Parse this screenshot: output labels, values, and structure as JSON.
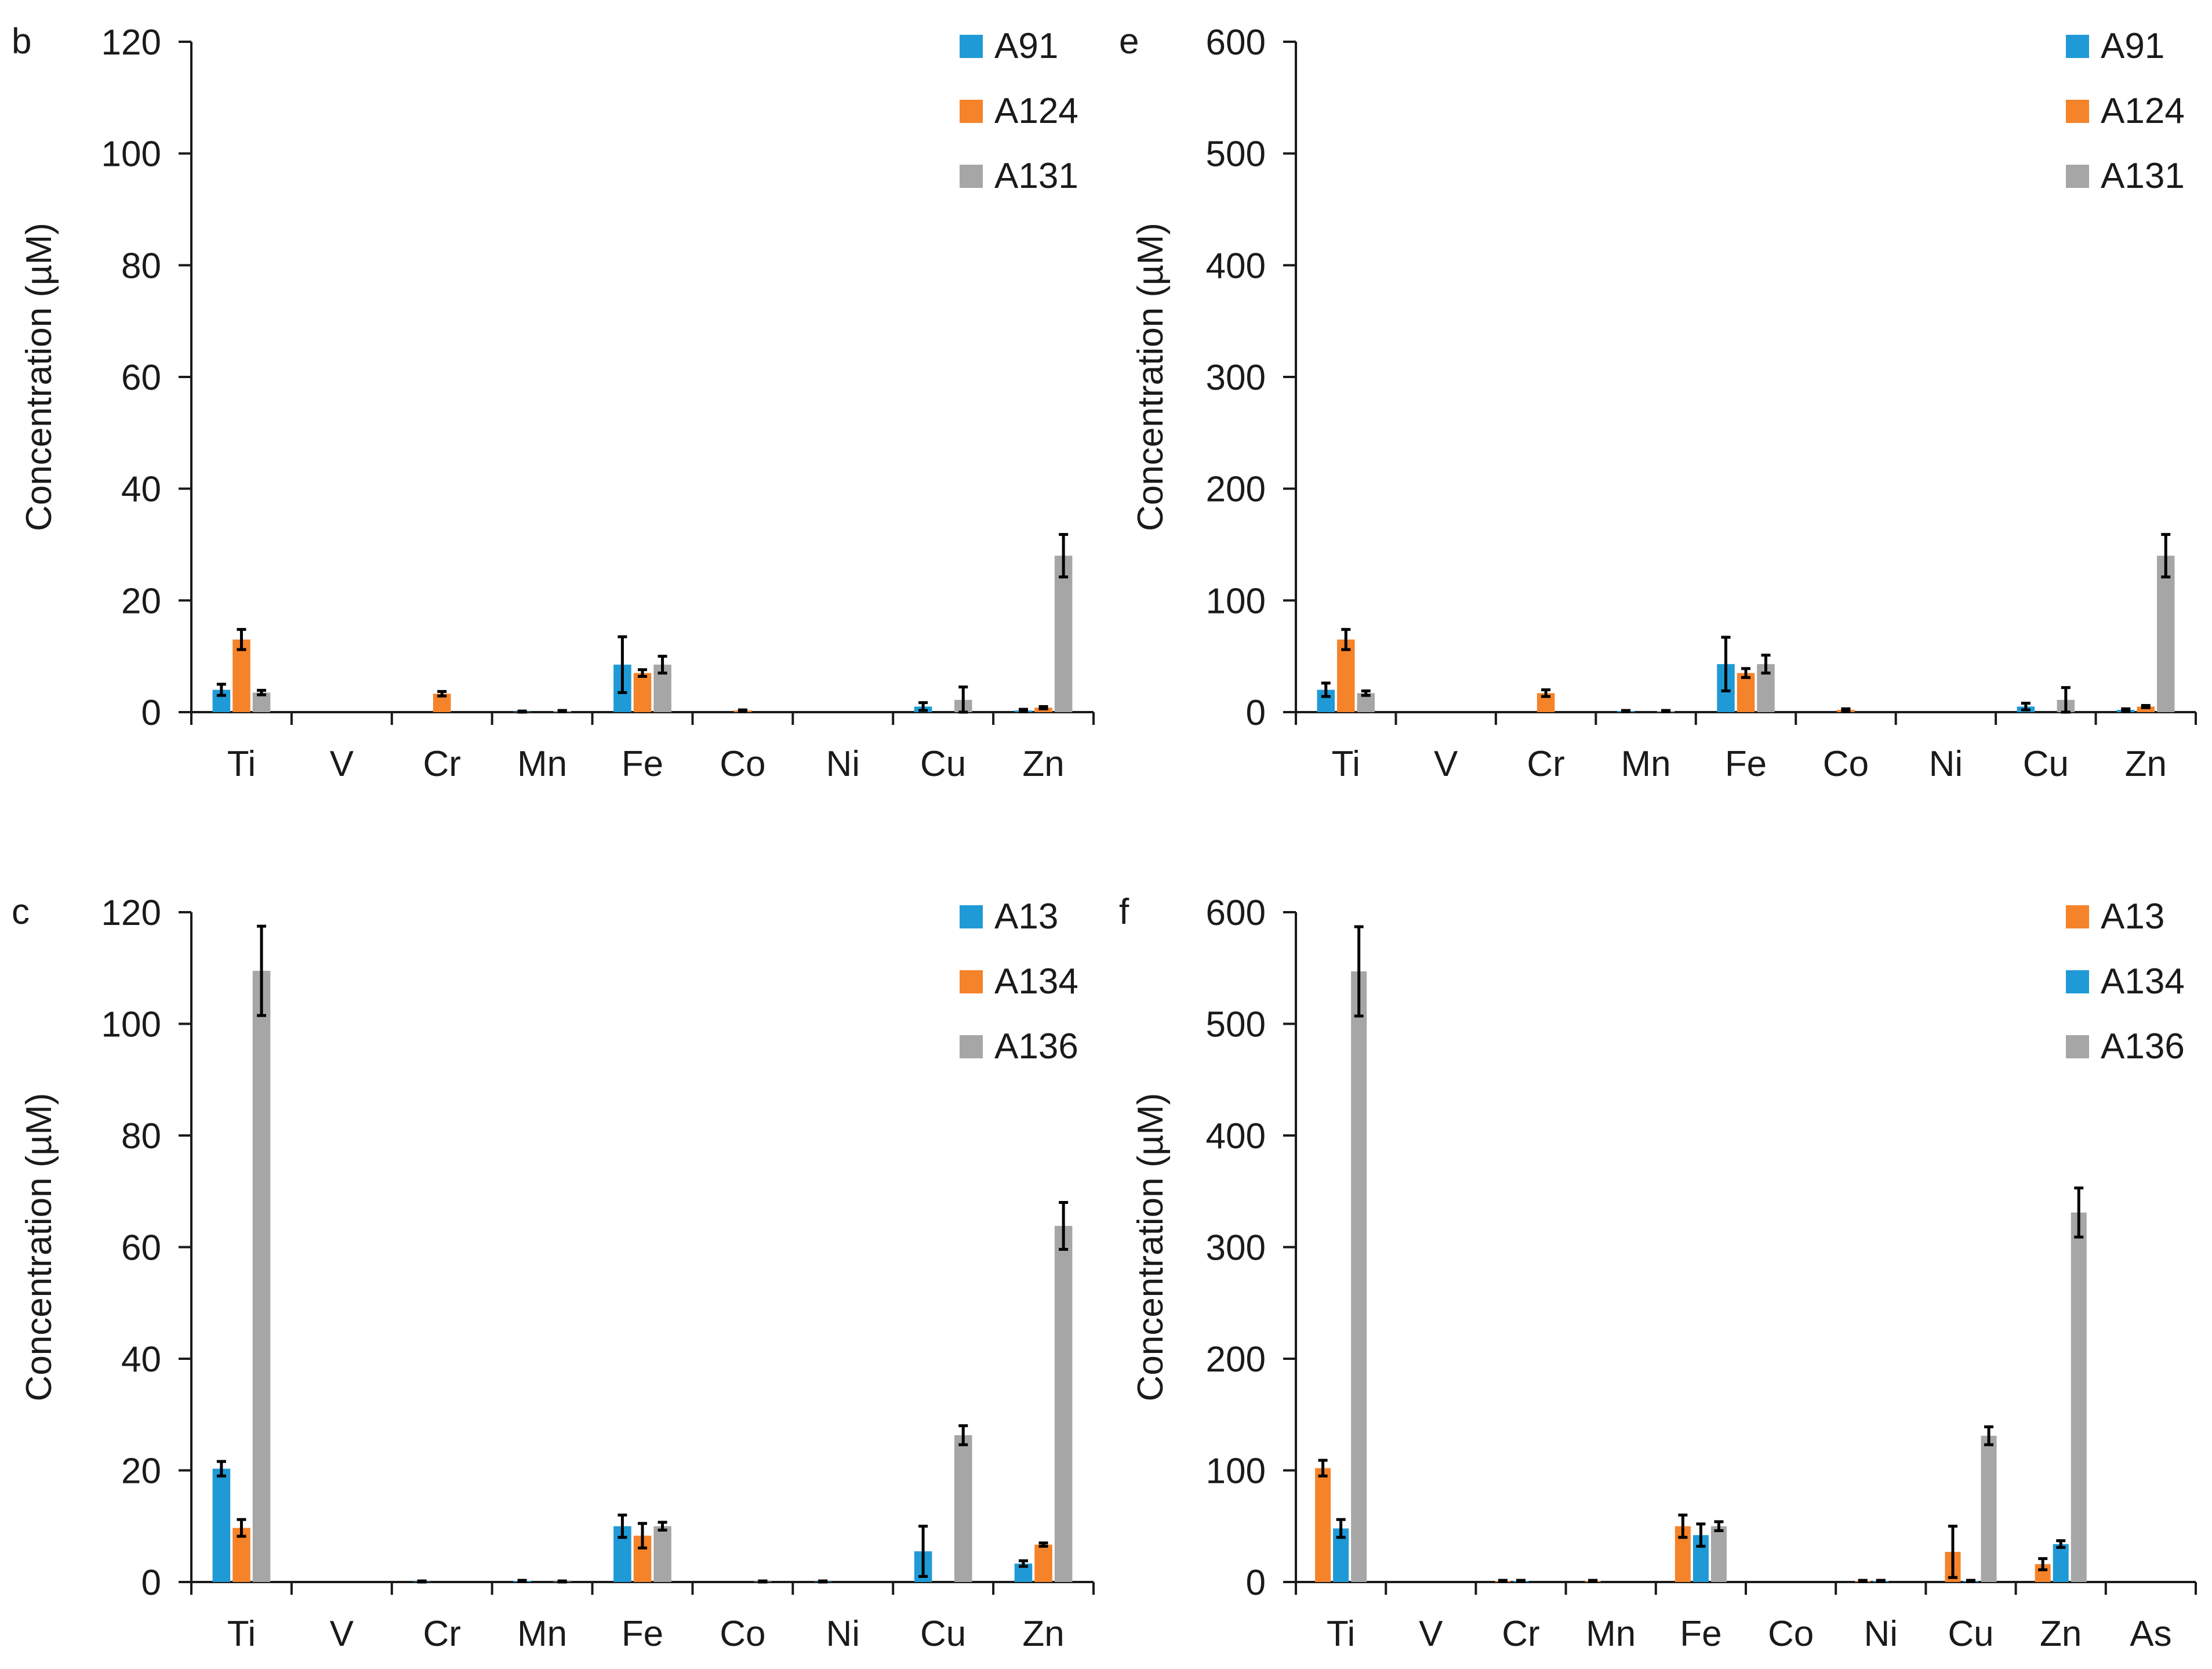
{
  "chart_data": [
    {
      "panel_label": "b",
      "type": "bar",
      "ylabel": "Concentration (µM)",
      "ylim": [
        0,
        120
      ],
      "yticks": [
        "0",
        "20",
        "40",
        "60",
        "80",
        "100",
        "120"
      ],
      "categories": [
        "Ti",
        "V",
        "Cr",
        "Mn",
        "Fe",
        "Co",
        "Ni",
        "Cu",
        "Zn"
      ],
      "legend": "top-right",
      "series": [
        {
          "name": "A91",
          "color": "#1f9ad6",
          "values": [
            4.0,
            0,
            0,
            0.1,
            8.5,
            0,
            0,
            1.0,
            0.3
          ],
          "errors": [
            1.0,
            0,
            0,
            0.1,
            5.0,
            0,
            0,
            0.7,
            0.2
          ]
        },
        {
          "name": "A124",
          "color": "#f5832a",
          "values": [
            13.0,
            0,
            3.3,
            0,
            7.0,
            0.3,
            0,
            0,
            0.8
          ],
          "errors": [
            1.8,
            0,
            0.4,
            0,
            0.6,
            0.1,
            0,
            0,
            0.2
          ]
        },
        {
          "name": "A131",
          "color": "#a6a6a6",
          "values": [
            3.5,
            0,
            0,
            0.2,
            8.5,
            0,
            0,
            2.2,
            28.0
          ],
          "errors": [
            0.4,
            0,
            0,
            0.1,
            1.5,
            0,
            0,
            2.3,
            3.8
          ]
        }
      ]
    },
    {
      "panel_label": "e",
      "type": "bar",
      "ylabel": "Concentration (µM)",
      "ylim": [
        0,
        600
      ],
      "yticks": [
        "0",
        "100",
        "200",
        "300",
        "400",
        "500",
        "600"
      ],
      "categories": [
        "Ti",
        "V",
        "Cr",
        "Mn",
        "Fe",
        "Co",
        "Ni",
        "Cu",
        "Zn"
      ],
      "legend": "top-right",
      "series": [
        {
          "name": "A91",
          "color": "#1f9ad6",
          "values": [
            20,
            0,
            0,
            1,
            43,
            0,
            0,
            5,
            2
          ],
          "errors": [
            6,
            0,
            0,
            0.5,
            24,
            0,
            0,
            3,
            1
          ]
        },
        {
          "name": "A124",
          "color": "#f5832a",
          "values": [
            65,
            0,
            17,
            0,
            35,
            2,
            0,
            0,
            5
          ],
          "errors": [
            9,
            0,
            3,
            0,
            4,
            1,
            0,
            0,
            1
          ]
        },
        {
          "name": "A131",
          "color": "#a6a6a6",
          "values": [
            17,
            0,
            0,
            1,
            43,
            0,
            0,
            11,
            140
          ],
          "errors": [
            2,
            0,
            0,
            0.5,
            8,
            0,
            0,
            11,
            19
          ]
        }
      ]
    },
    {
      "panel_label": "c",
      "type": "bar",
      "ylabel": "Concentration (µM)",
      "ylim": [
        0,
        120
      ],
      "yticks": [
        "0",
        "20",
        "40",
        "60",
        "80",
        "100",
        "120"
      ],
      "categories": [
        "Ti",
        "V",
        "Cr",
        "Mn",
        "Fe",
        "Co",
        "Ni",
        "Cu",
        "Zn"
      ],
      "legend": "top-right",
      "series": [
        {
          "name": "A13",
          "color": "#1f9ad6",
          "values": [
            20.3,
            0,
            0.1,
            0.2,
            10.0,
            0,
            0.1,
            5.5,
            3.3
          ],
          "errors": [
            1.3,
            0,
            0.1,
            0.1,
            2.0,
            0,
            0.1,
            4.5,
            0.5
          ]
        },
        {
          "name": "A134",
          "color": "#f5832a",
          "values": [
            9.7,
            0,
            0,
            0,
            8.3,
            0,
            0,
            0,
            6.7
          ],
          "errors": [
            1.5,
            0,
            0,
            0,
            2.2,
            0,
            0,
            0,
            0.3
          ]
        },
        {
          "name": "A136",
          "color": "#a6a6a6",
          "values": [
            109.5,
            0,
            0,
            0.1,
            10.0,
            0.1,
            0,
            26.3,
            63.8
          ],
          "errors": [
            8.0,
            0,
            0,
            0.1,
            0.7,
            0.1,
            0,
            1.7,
            4.2
          ]
        }
      ]
    },
    {
      "panel_label": "f",
      "type": "bar",
      "ylabel": "Concentration (µM)",
      "ylim": [
        0,
        600
      ],
      "yticks": [
        "0",
        "100",
        "200",
        "300",
        "400",
        "500",
        "600"
      ],
      "categories": [
        "Ti",
        "V",
        "Cr",
        "Mn",
        "Fe",
        "Co",
        "Ni",
        "Cu",
        "Zn",
        "As"
      ],
      "legend": "top-right",
      "series": [
        {
          "name": "A13",
          "color": "#f5832a",
          "values": [
            102,
            0,
            1,
            1,
            50,
            0,
            1,
            27,
            16,
            0
          ],
          "errors": [
            7,
            0,
            0.5,
            0.5,
            10,
            0,
            0.5,
            23,
            5,
            0
          ]
        },
        {
          "name": "A134",
          "color": "#1f9ad6",
          "values": [
            48,
            0,
            1,
            0,
            42,
            0,
            1,
            1,
            34,
            0
          ],
          "errors": [
            8,
            0,
            0.5,
            0,
            10,
            0,
            0.5,
            0.5,
            3,
            0
          ]
        },
        {
          "name": "A136",
          "color": "#a6a6a6",
          "values": [
            547,
            0,
            0,
            0,
            50,
            0,
            0,
            131,
            331,
            0
          ],
          "errors": [
            40,
            0,
            0,
            0,
            4,
            0,
            0,
            8,
            22,
            0
          ]
        }
      ]
    }
  ]
}
